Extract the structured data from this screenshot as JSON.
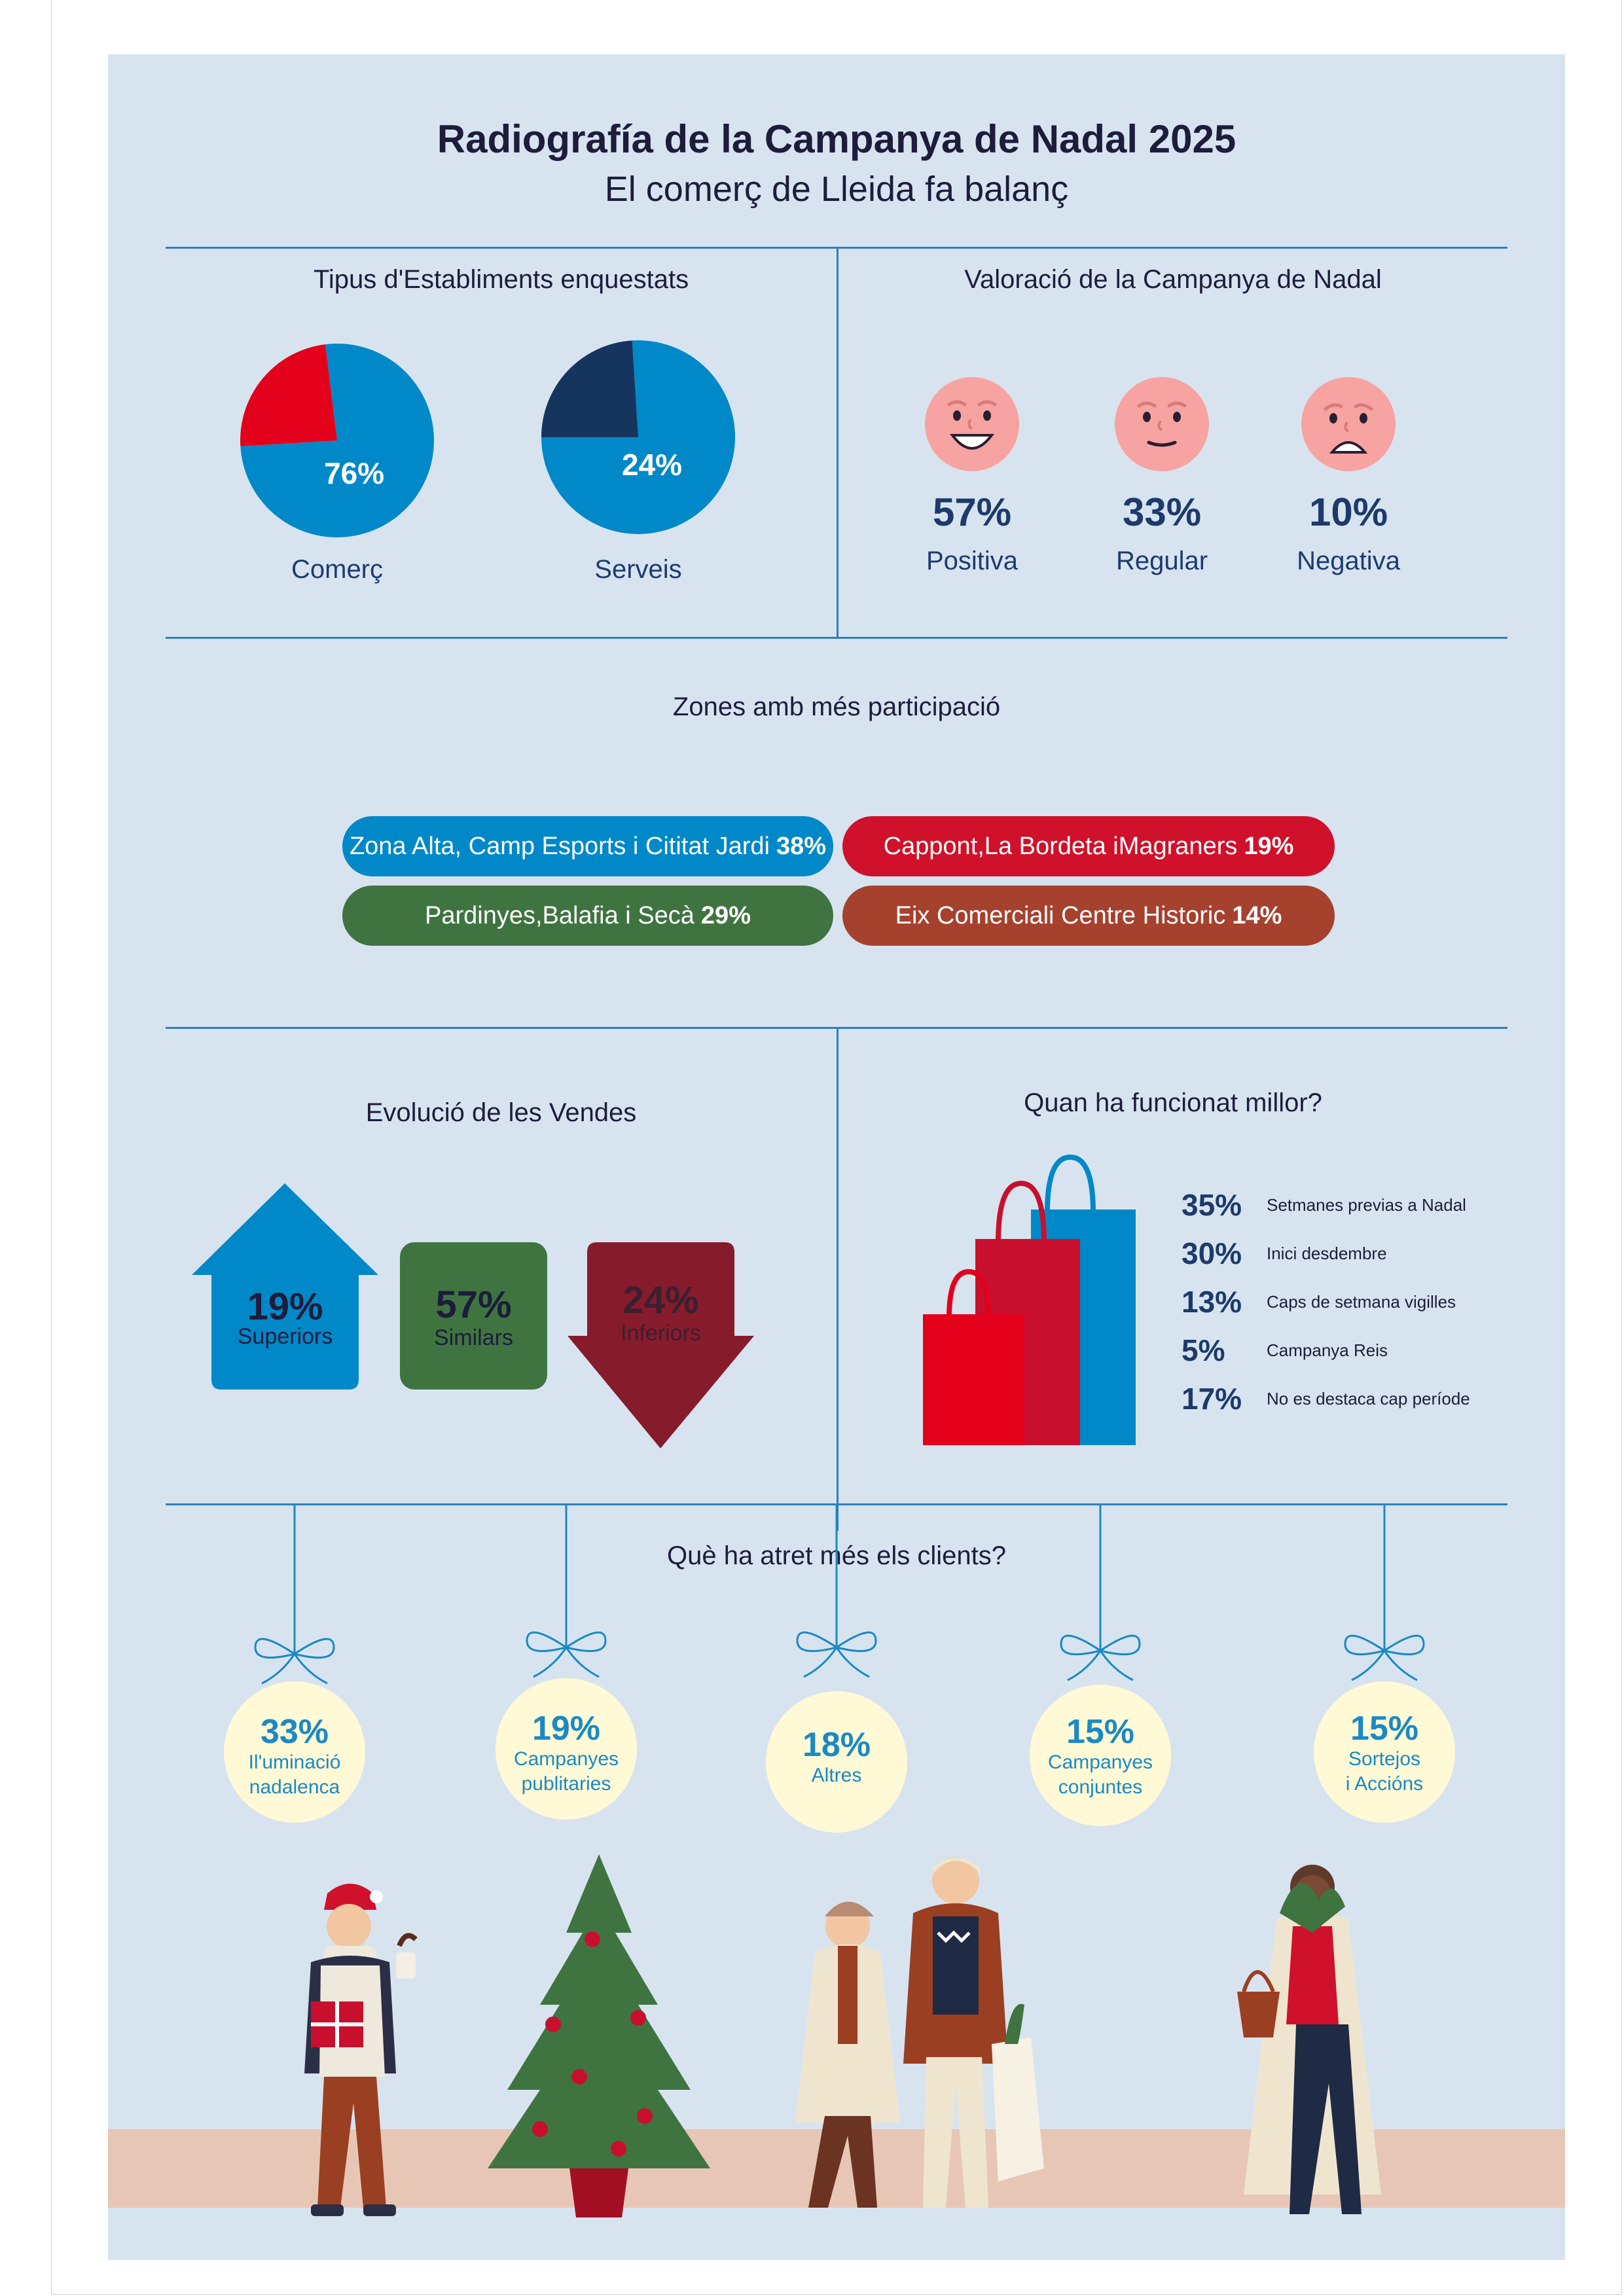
{
  "header": {
    "title": "Radiografía de la Campanya de Nadal 2025",
    "subtitle": "El comerç de Lleida fa balanç"
  },
  "establishments": {
    "title": "Tipus d'Establiments enquestats",
    "charts": [
      {
        "label": "Comerç",
        "value_label": "76%",
        "value": 76,
        "colors": {
          "main": "#0088c8",
          "rest": "#e3001b"
        }
      },
      {
        "label": "Serveis",
        "value_label": "24%",
        "value": 24,
        "colors": {
          "main": "#0088c8",
          "rest": "#16355e"
        }
      }
    ]
  },
  "rating": {
    "title": "Valoració de la Campanya de Nadal",
    "items": [
      {
        "pct": "57%",
        "label": "Positiva",
        "face": "happy-face-icon"
      },
      {
        "pct": "33%",
        "label": "Regular",
        "face": "neutral-face-icon"
      },
      {
        "pct": "10%",
        "label": "Negativa",
        "face": "sad-face-icon"
      }
    ]
  },
  "zones": {
    "title": "Zones amb més participació",
    "items": [
      {
        "name": "Zona Alta, Camp Esports i Cititat Jardi",
        "pct": "38%",
        "color": "#0088c8"
      },
      {
        "name": "Cappont,La Bordeta iMagraners",
        "pct": "19%",
        "color": "#d0112b"
      },
      {
        "name": "Pardinyes,Balafia i Secà",
        "pct": "29%",
        "color": "#3f7441"
      },
      {
        "name": "Eix Comerciali Centre Historic ",
        "pct": "14%",
        "color": "#a6412e"
      }
    ]
  },
  "sales": {
    "title": "Evolució de les Vendes",
    "items": [
      {
        "pct": "19%",
        "label": "Superiors",
        "color": "#0088c8"
      },
      {
        "pct": "57%",
        "label": "Similars",
        "color": "#3f7441"
      },
      {
        "pct": "24%",
        "label": "Inferiors",
        "color": "#861b2b"
      }
    ]
  },
  "periods": {
    "title": "Quan ha funcionat millor?",
    "items": [
      {
        "pct": "35%",
        "label": "Setmanes previas a Nadal"
      },
      {
        "pct": "30%",
        "label": "Inici desdembre"
      },
      {
        "pct": "13%",
        "label": "Caps de setmana vigilles"
      },
      {
        "pct": "5%",
        "label": "Campanya Reis"
      },
      {
        "pct": "17%",
        "label": "No es destaca cap període"
      }
    ]
  },
  "attractions": {
    "title": "Què ha atret més els clients?",
    "items": [
      {
        "pct": "33%",
        "line1": "Il'uminació",
        "line2": "nadalenca"
      },
      {
        "pct": "19%",
        "line1": "Campanyes",
        "line2": "publitaries"
      },
      {
        "pct": "18%",
        "line1": "Altres",
        "line2": ""
      },
      {
        "pct": "15%",
        "line1": "Campanyes",
        "line2": "conjuntes"
      },
      {
        "pct": "15%",
        "line1": "Sortejos",
        "line2": "i Accións"
      }
    ]
  },
  "chart_data": [
    {
      "type": "pie",
      "title": "Tipus d'Establiments enquestats",
      "categories": [
        "Comerç",
        "Serveis"
      ],
      "values": [
        76,
        24
      ]
    },
    {
      "type": "table",
      "title": "Valoració de la Campanya de Nadal",
      "categories": [
        "Positiva",
        "Regular",
        "Negativa"
      ],
      "values": [
        57,
        33,
        10
      ]
    },
    {
      "type": "table",
      "title": "Zones amb més participació",
      "categories": [
        "Zona Alta, Camp Esports i Cititat Jardi",
        "Cappont,La Bordeta iMagraners",
        "Pardinyes,Balafia i Secà",
        "Eix Comerciali Centre Historic"
      ],
      "values": [
        38,
        19,
        29,
        14
      ]
    },
    {
      "type": "table",
      "title": "Evolució de les Vendes",
      "categories": [
        "Superiors",
        "Similars",
        "Inferiors"
      ],
      "values": [
        19,
        57,
        24
      ]
    },
    {
      "type": "table",
      "title": "Quan ha funcionat millor?",
      "categories": [
        "Setmanes previas a Nadal",
        "Inici desdembre",
        "Caps de setmana vigilles",
        "Campanya Reis",
        "No es destaca cap període"
      ],
      "values": [
        35,
        30,
        13,
        5,
        17
      ]
    },
    {
      "type": "table",
      "title": "Què ha atret més els clients?",
      "categories": [
        "Il'uminació nadalenca",
        "Campanyes publitaries",
        "Altres",
        "Campanyes conjuntes",
        "Sortejos i Accións"
      ],
      "values": [
        33,
        19,
        18,
        15,
        15
      ]
    }
  ]
}
